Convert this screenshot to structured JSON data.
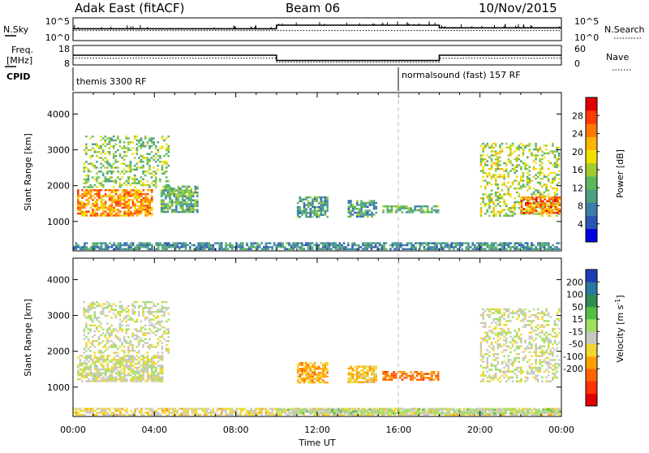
{
  "header": {
    "radar": "Adak East (fitACF)",
    "beam": "Beam 06",
    "date": "10/Nov/2015"
  },
  "panels": {
    "nsky": {
      "label": "N.Sky",
      "ticks": [
        "10^5",
        "10^0"
      ]
    },
    "nsearch": {
      "label": "N.Search",
      "ticks": [
        "10^5",
        "10^0"
      ]
    },
    "freq": {
      "label_1": "Freq.",
      "label_2": "[MHz]",
      "ticks": [
        "18",
        "8"
      ]
    },
    "nave": {
      "label": "Nave",
      "ticks": [
        "60",
        "0"
      ]
    },
    "cpid": {
      "label": "CPID",
      "segments": [
        "themis 3300 RF",
        "normalsound (fast) 157 RF"
      ]
    }
  },
  "chart_data": [
    {
      "type": "line",
      "title": "N.Sky / N.Search",
      "x": [
        "00:00",
        "10:00",
        "18:00",
        "24:00"
      ],
      "series": [
        {
          "name": "N.Sky",
          "values": [
            2.6,
            3.4,
            2.8,
            2.8
          ]
        },
        {
          "name": "N.Search",
          "values": [
            2.2,
            2.2,
            2.2,
            2.2
          ]
        }
      ],
      "ylim": [
        0,
        5
      ],
      "yscale": "log"
    },
    {
      "type": "line",
      "title": "Freq. / Nave",
      "x": [
        "00:00",
        "10:00",
        "18:00",
        "24:00"
      ],
      "series": [
        {
          "name": "Freq.",
          "values": [
            13.0,
            10.3,
            13.0,
            13.0
          ]
        },
        {
          "name": "Nave",
          "values": [
            21,
            9,
            21,
            21
          ]
        }
      ],
      "ylim": [
        8,
        18
      ],
      "y2lim": [
        0,
        60
      ]
    },
    {
      "type": "heatmap",
      "title": "Power",
      "xlabel": "Time UT",
      "ylabel": "Slant Range [km]",
      "xlim": [
        0,
        24
      ],
      "ylim": [
        180,
        4600
      ],
      "xticks": [
        "00:00",
        "04:00",
        "08:00",
        "12:00",
        "16:00",
        "20:00",
        "00:00"
      ],
      "yticks": [
        "1000",
        "2000",
        "3000",
        "4000"
      ],
      "colorbar": {
        "label": "Power [dB]",
        "ticks": [
          "4",
          "8",
          "12",
          "16",
          "20",
          "24",
          "28"
        ],
        "colors": [
          "#0000e0",
          "#2a55b4",
          "#3c7ea8",
          "#4aa080",
          "#5cb85c",
          "#a0cc30",
          "#f0e000",
          "#ffb400",
          "#ff7800",
          "#ff3c00",
          "#e00000"
        ]
      },
      "regions": [
        {
          "x0": 0.2,
          "x1": 4.0,
          "y0": 1100,
          "y1": 1900,
          "level": 24
        },
        {
          "x0": 0.5,
          "x1": 4.8,
          "y0": 1900,
          "y1": 3400,
          "level": 14
        },
        {
          "x0": 4.3,
          "x1": 6.2,
          "y0": 1200,
          "y1": 2000,
          "level": 12
        },
        {
          "x0": 11.0,
          "x1": 12.6,
          "y0": 1100,
          "y1": 1700,
          "level": 10
        },
        {
          "x0": 13.5,
          "x1": 15.0,
          "y0": 1100,
          "y1": 1600,
          "level": 10
        },
        {
          "x0": 15.2,
          "x1": 18.0,
          "y0": 1200,
          "y1": 1450,
          "level": 12
        },
        {
          "x0": 20.0,
          "x1": 24.0,
          "y0": 1100,
          "y1": 3200,
          "level": 16
        },
        {
          "x0": 22.0,
          "x1": 24.0,
          "y0": 1200,
          "y1": 1700,
          "level": 26
        },
        {
          "x0": 0.0,
          "x1": 24.0,
          "y0": 180,
          "y1": 420,
          "level": 8
        }
      ]
    },
    {
      "type": "heatmap",
      "title": "Velocity",
      "xlabel": "Time UT",
      "ylabel": "Slant Range [km]",
      "xlim": [
        0,
        24
      ],
      "ylim": [
        180,
        4600
      ],
      "xticks": [
        "00:00",
        "04:00",
        "08:00",
        "12:00",
        "16:00",
        "20:00",
        "00:00"
      ],
      "yticks": [
        "1000",
        "2000",
        "3000",
        "4000"
      ],
      "colorbar": {
        "label": "Velocity [m s",
        "label_sup": "-1",
        "ticks": [
          "200",
          "100",
          "50",
          "15",
          "-15",
          "-50",
          "-100",
          "-200"
        ],
        "colors": [
          "#1e3cb4",
          "#2a78a0",
          "#2e8c50",
          "#50c040",
          "#a0e060",
          "#c8c8c0",
          "#f0d830",
          "#ffa000",
          "#ff6400",
          "#ff3200",
          "#e00000"
        ]
      },
      "regions": [
        {
          "x0": 0.2,
          "x1": 4.5,
          "y0": 1100,
          "y1": 1900,
          "level": 0
        },
        {
          "x0": 0.5,
          "x1": 4.8,
          "y0": 1900,
          "y1": 3400,
          "level": 0
        },
        {
          "x0": 11.0,
          "x1": 12.6,
          "y0": 1100,
          "y1": 1700,
          "level": -80
        },
        {
          "x0": 13.5,
          "x1": 15.0,
          "y0": 1100,
          "y1": 1600,
          "level": -60
        },
        {
          "x0": 15.2,
          "x1": 18.0,
          "y0": 1150,
          "y1": 1450,
          "level": -120
        },
        {
          "x0": 20.0,
          "x1": 24.0,
          "y0": 1100,
          "y1": 3200,
          "level": 0
        },
        {
          "x0": 0.0,
          "x1": 24.0,
          "y0": 180,
          "y1": 420,
          "level": -30
        },
        {
          "x0": 10.0,
          "x1": 24.0,
          "y0": 200,
          "y1": 400,
          "level": 30
        }
      ]
    }
  ]
}
